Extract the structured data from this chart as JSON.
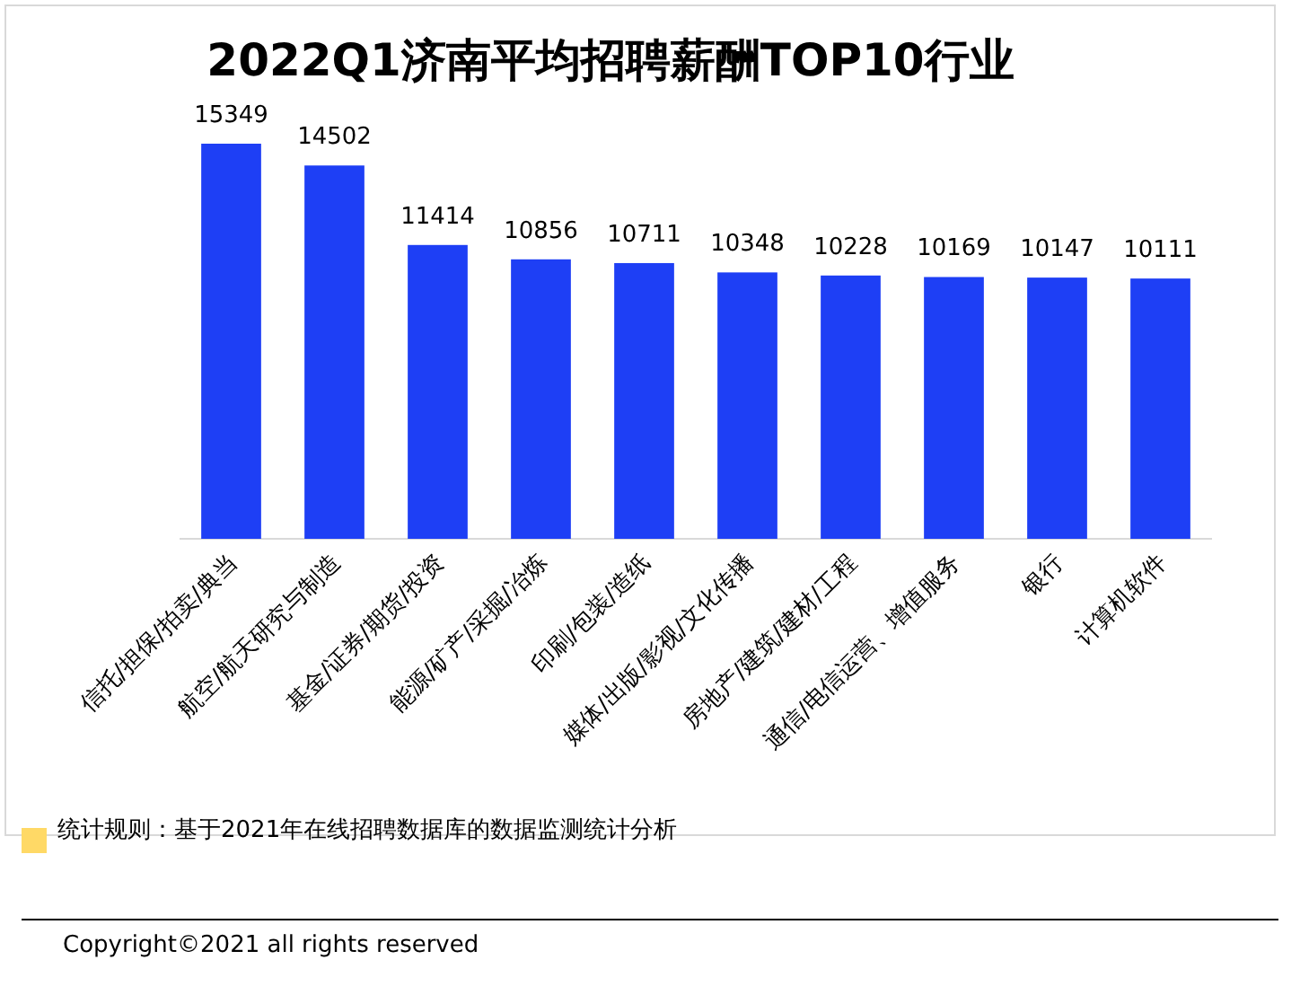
{
  "chart_data": {
    "type": "bar",
    "title": "2022Q1济南平均招聘薪酬TOP10行业",
    "categories": [
      "信托/担保/拍卖/典当",
      "航空/航天研究与制造",
      "基金/证券/期货/投资",
      "能源/矿产/采掘/冶炼",
      "印刷/包装/造纸",
      "媒体/出版/影视/文化传播",
      "房地产/建筑/建材/工程",
      "通信/电信运营、增值服务",
      "银行",
      "计算机软件"
    ],
    "values": [
      15349,
      14502,
      11414,
      10856,
      10711,
      10348,
      10228,
      10169,
      10147,
      10111
    ],
    "color": "#1e3ff5",
    "data_labels": true,
    "annotations": [
      "统计规则：基于2021年在线招聘数据库的数据监测统计分析",
      "Copyright©2021 all rights reserved"
    ]
  }
}
